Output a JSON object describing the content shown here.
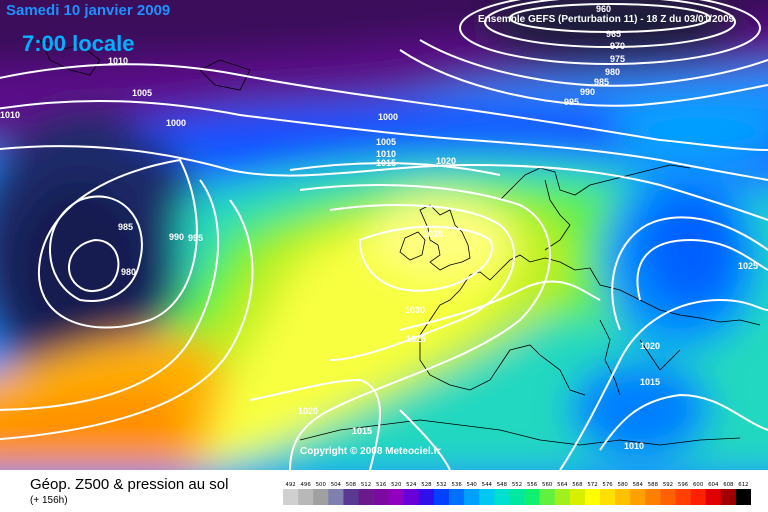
{
  "header": {
    "date": "Samedi 10 janvier 2009",
    "time": "7:00 locale",
    "run_info": "Ensemble GEFS (Perturbation 11) - 18 Z du 03/01/2009"
  },
  "map": {
    "copyright": "Copyright © 2008 Meteociel.fr",
    "pressure_labels": [
      "960",
      "965",
      "970",
      "975",
      "980",
      "985",
      "990",
      "995",
      "1000",
      "1005",
      "1010",
      "1015",
      "1020",
      "1035",
      "1030",
      "1025",
      "1020",
      "1015",
      "1010",
      "1005",
      "1000",
      "1010",
      "1010",
      "985",
      "980",
      "990",
      "995",
      "1020",
      "1015",
      "1025",
      "1020",
      "1015",
      "1010",
      "1025"
    ]
  },
  "legend": {
    "title": "Géop. Z500 & pression au sol",
    "subtitle": "(+ 156h)",
    "scale_values": [
      "492",
      "496",
      "500",
      "504",
      "508",
      "512",
      "516",
      "520",
      "524",
      "528",
      "532",
      "536",
      "540",
      "544",
      "548",
      "552",
      "556",
      "560",
      "564",
      "568",
      "572",
      "576",
      "580",
      "584",
      "588",
      "592",
      "596",
      "600",
      "604",
      "608",
      "612"
    ],
    "scale_colors": [
      "#d0d0d0",
      "#b8b8b8",
      "#a0a0a0",
      "#8080b0",
      "#5a3a90",
      "#6a1a8a",
      "#7a0aa0",
      "#9000c0",
      "#6a00d8",
      "#3010e8",
      "#0040ff",
      "#0070ff",
      "#00a0ff",
      "#00c8f0",
      "#00e0d0",
      "#00e8a0",
      "#10f070",
      "#60f040",
      "#a0f020",
      "#d8f000",
      "#ffff00",
      "#ffe000",
      "#ffc000",
      "#ffa000",
      "#ff8000",
      "#ff6000",
      "#ff4000",
      "#ff2000",
      "#e00000",
      "#a00000",
      "#000000"
    ]
  }
}
